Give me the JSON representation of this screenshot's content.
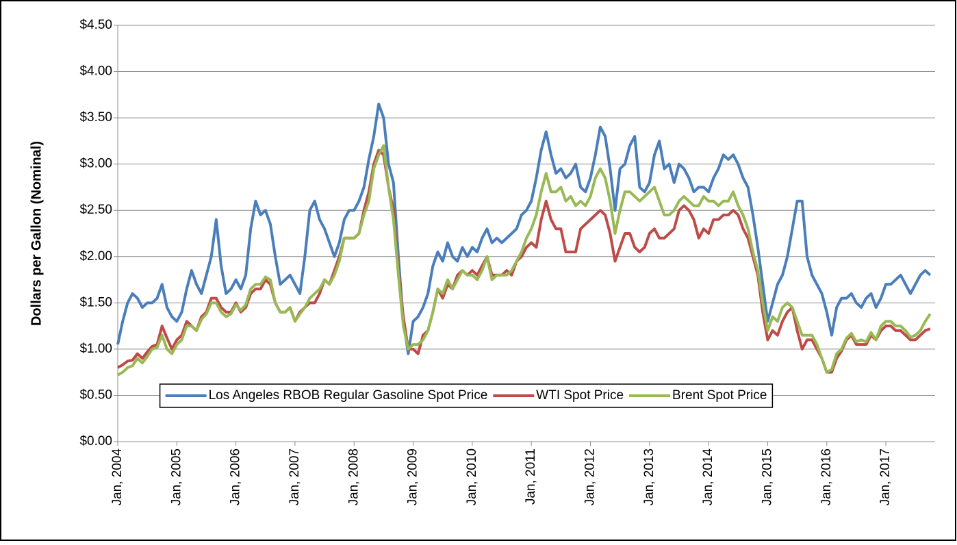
{
  "chart_data": {
    "type": "line",
    "y_label": "Dollars per Gallon (Nominal)",
    "x": [
      "2004-01",
      "2004-02",
      "2004-03",
      "2004-04",
      "2004-05",
      "2004-06",
      "2004-07",
      "2004-08",
      "2004-09",
      "2004-10",
      "2004-11",
      "2004-12",
      "2005-01",
      "2005-02",
      "2005-03",
      "2005-04",
      "2005-05",
      "2005-06",
      "2005-07",
      "2005-08",
      "2005-09",
      "2005-10",
      "2005-11",
      "2005-12",
      "2006-01",
      "2006-02",
      "2006-03",
      "2006-04",
      "2006-05",
      "2006-06",
      "2006-07",
      "2006-08",
      "2006-09",
      "2006-10",
      "2006-11",
      "2006-12",
      "2007-01",
      "2007-02",
      "2007-03",
      "2007-04",
      "2007-05",
      "2007-06",
      "2007-07",
      "2007-08",
      "2007-09",
      "2007-10",
      "2007-11",
      "2007-12",
      "2008-01",
      "2008-02",
      "2008-03",
      "2008-04",
      "2008-05",
      "2008-06",
      "2008-07",
      "2008-08",
      "2008-09",
      "2008-10",
      "2008-11",
      "2008-12",
      "2009-01",
      "2009-02",
      "2009-03",
      "2009-04",
      "2009-05",
      "2009-06",
      "2009-07",
      "2009-08",
      "2009-09",
      "2009-10",
      "2009-11",
      "2009-12",
      "2010-01",
      "2010-02",
      "2010-03",
      "2010-04",
      "2010-05",
      "2010-06",
      "2010-07",
      "2010-08",
      "2010-09",
      "2010-10",
      "2010-11",
      "2010-12",
      "2011-01",
      "2011-02",
      "2011-03",
      "2011-04",
      "2011-05",
      "2011-06",
      "2011-07",
      "2011-08",
      "2011-09",
      "2011-10",
      "2011-11",
      "2011-12",
      "2012-01",
      "2012-02",
      "2012-03",
      "2012-04",
      "2012-05",
      "2012-06",
      "2012-07",
      "2012-08",
      "2012-09",
      "2012-10",
      "2012-11",
      "2012-12",
      "2013-01",
      "2013-02",
      "2013-03",
      "2013-04",
      "2013-05",
      "2013-06",
      "2013-07",
      "2013-08",
      "2013-09",
      "2013-10",
      "2013-11",
      "2013-12",
      "2014-01",
      "2014-02",
      "2014-03",
      "2014-04",
      "2014-05",
      "2014-06",
      "2014-07",
      "2014-08",
      "2014-09",
      "2014-10",
      "2014-11",
      "2014-12",
      "2015-01",
      "2015-02",
      "2015-03",
      "2015-04",
      "2015-05",
      "2015-06",
      "2015-07",
      "2015-08",
      "2015-09",
      "2015-10",
      "2015-11",
      "2015-12",
      "2016-01",
      "2016-02",
      "2016-03",
      "2016-04",
      "2016-05",
      "2016-06",
      "2016-07",
      "2016-08",
      "2016-09",
      "2016-10",
      "2016-11",
      "2016-12",
      "2017-01",
      "2017-02",
      "2017-03",
      "2017-04",
      "2017-05",
      "2017-06",
      "2017-07",
      "2017-08",
      "2017-09",
      "2017-10"
    ],
    "series": [
      {
        "name": "Los Angeles RBOB Regular Gasoline Spot Price",
        "color": "#4a7ebb",
        "values": [
          1.05,
          1.3,
          1.5,
          1.6,
          1.55,
          1.45,
          1.5,
          1.5,
          1.55,
          1.7,
          1.45,
          1.35,
          1.3,
          1.4,
          1.65,
          1.85,
          1.7,
          1.6,
          1.8,
          2.0,
          2.4,
          1.9,
          1.6,
          1.65,
          1.75,
          1.65,
          1.8,
          2.3,
          2.6,
          2.45,
          2.5,
          2.35,
          2.0,
          1.7,
          1.75,
          1.8,
          1.7,
          1.6,
          2.0,
          2.5,
          2.6,
          2.4,
          2.3,
          2.15,
          2.0,
          2.15,
          2.4,
          2.5,
          2.5,
          2.6,
          2.75,
          3.05,
          3.3,
          3.65,
          3.5,
          3.0,
          2.8,
          2.0,
          1.3,
          0.95,
          1.3,
          1.35,
          1.45,
          1.6,
          1.9,
          2.05,
          1.95,
          2.15,
          2.0,
          1.95,
          2.1,
          2.0,
          2.1,
          2.05,
          2.2,
          2.3,
          2.15,
          2.2,
          2.15,
          2.2,
          2.25,
          2.3,
          2.45,
          2.5,
          2.6,
          2.85,
          3.15,
          3.35,
          3.1,
          2.9,
          2.95,
          2.85,
          2.9,
          3.0,
          2.75,
          2.7,
          2.85,
          3.1,
          3.4,
          3.3,
          2.95,
          2.5,
          2.95,
          3.0,
          3.2,
          3.3,
          2.75,
          2.7,
          2.8,
          3.1,
          3.25,
          2.95,
          3.0,
          2.8,
          3.0,
          2.95,
          2.85,
          2.7,
          2.75,
          2.75,
          2.7,
          2.85,
          2.95,
          3.1,
          3.05,
          3.1,
          3.0,
          2.85,
          2.75,
          2.45,
          2.1,
          1.7,
          1.3,
          1.5,
          1.7,
          1.8,
          2.0,
          2.3,
          2.6,
          2.6,
          2.0,
          1.8,
          1.7,
          1.6,
          1.4,
          1.15,
          1.45,
          1.55,
          1.55,
          1.6,
          1.5,
          1.45,
          1.55,
          1.6,
          1.45,
          1.55,
          1.7,
          1.7,
          1.75,
          1.8,
          1.7,
          1.6,
          1.7,
          1.8,
          1.85,
          1.8
        ]
      },
      {
        "name": "WTI Spot Price",
        "color": "#be4b48",
        "values": [
          0.8,
          0.83,
          0.87,
          0.88,
          0.95,
          0.9,
          0.97,
          1.03,
          1.05,
          1.25,
          1.12,
          1.0,
          1.1,
          1.15,
          1.3,
          1.25,
          1.2,
          1.35,
          1.4,
          1.55,
          1.55,
          1.45,
          1.4,
          1.4,
          1.5,
          1.4,
          1.45,
          1.6,
          1.65,
          1.65,
          1.75,
          1.7,
          1.5,
          1.4,
          1.4,
          1.45,
          1.3,
          1.4,
          1.45,
          1.5,
          1.5,
          1.6,
          1.75,
          1.7,
          1.85,
          2.0,
          2.2,
          2.2,
          2.2,
          2.25,
          2.5,
          2.7,
          3.0,
          3.15,
          3.1,
          2.75,
          2.5,
          1.85,
          1.35,
          1.0,
          1.0,
          0.95,
          1.15,
          1.2,
          1.4,
          1.65,
          1.55,
          1.7,
          1.65,
          1.8,
          1.85,
          1.8,
          1.85,
          1.8,
          1.9,
          2.0,
          1.8,
          1.8,
          1.8,
          1.85,
          1.8,
          1.95,
          2.0,
          2.1,
          2.15,
          2.1,
          2.4,
          2.6,
          2.4,
          2.3,
          2.3,
          2.05,
          2.05,
          2.05,
          2.3,
          2.35,
          2.4,
          2.45,
          2.5,
          2.45,
          2.25,
          1.95,
          2.1,
          2.25,
          2.25,
          2.1,
          2.05,
          2.1,
          2.25,
          2.3,
          2.2,
          2.2,
          2.25,
          2.3,
          2.5,
          2.55,
          2.5,
          2.4,
          2.2,
          2.3,
          2.25,
          2.4,
          2.4,
          2.45,
          2.45,
          2.5,
          2.45,
          2.3,
          2.2,
          2.0,
          1.8,
          1.4,
          1.1,
          1.2,
          1.15,
          1.3,
          1.4,
          1.45,
          1.2,
          1.0,
          1.1,
          1.1,
          1.0,
          0.9,
          0.75,
          0.75,
          0.9,
          0.98,
          1.1,
          1.15,
          1.05,
          1.05,
          1.05,
          1.15,
          1.1,
          1.2,
          1.25,
          1.25,
          1.2,
          1.2,
          1.15,
          1.1,
          1.1,
          1.15,
          1.2,
          1.22
        ]
      },
      {
        "name": "Brent Spot Price",
        "color": "#98b954",
        "values": [
          0.72,
          0.75,
          0.8,
          0.82,
          0.9,
          0.85,
          0.92,
          1.0,
          1.02,
          1.15,
          1.0,
          0.95,
          1.05,
          1.1,
          1.25,
          1.25,
          1.2,
          1.32,
          1.38,
          1.5,
          1.5,
          1.4,
          1.35,
          1.38,
          1.48,
          1.42,
          1.48,
          1.65,
          1.7,
          1.7,
          1.78,
          1.75,
          1.5,
          1.4,
          1.4,
          1.45,
          1.3,
          1.38,
          1.45,
          1.55,
          1.6,
          1.65,
          1.75,
          1.7,
          1.8,
          1.95,
          2.2,
          2.2,
          2.2,
          2.25,
          2.45,
          2.6,
          2.95,
          3.1,
          3.2,
          2.75,
          2.4,
          1.8,
          1.25,
          1.0,
          1.05,
          1.05,
          1.1,
          1.2,
          1.4,
          1.65,
          1.6,
          1.75,
          1.65,
          1.75,
          1.85,
          1.8,
          1.8,
          1.75,
          1.85,
          2.0,
          1.75,
          1.8,
          1.8,
          1.8,
          1.85,
          1.95,
          2.05,
          2.2,
          2.3,
          2.45,
          2.7,
          2.9,
          2.7,
          2.7,
          2.75,
          2.6,
          2.65,
          2.55,
          2.6,
          2.55,
          2.65,
          2.85,
          2.95,
          2.85,
          2.6,
          2.25,
          2.5,
          2.7,
          2.7,
          2.65,
          2.6,
          2.65,
          2.7,
          2.75,
          2.6,
          2.45,
          2.45,
          2.5,
          2.6,
          2.65,
          2.6,
          2.55,
          2.55,
          2.65,
          2.6,
          2.6,
          2.55,
          2.6,
          2.6,
          2.7,
          2.55,
          2.45,
          2.3,
          2.05,
          1.85,
          1.5,
          1.2,
          1.35,
          1.3,
          1.45,
          1.5,
          1.45,
          1.3,
          1.15,
          1.15,
          1.15,
          1.05,
          0.9,
          0.75,
          0.78,
          0.95,
          1.0,
          1.12,
          1.17,
          1.08,
          1.1,
          1.08,
          1.18,
          1.1,
          1.25,
          1.3,
          1.3,
          1.25,
          1.25,
          1.2,
          1.13,
          1.15,
          1.2,
          1.3,
          1.38
        ]
      }
    ],
    "xlim": [
      "2004-01",
      "2017-11"
    ],
    "xticks": [
      {
        "value": "2004-01",
        "label": "Jan, 2004"
      },
      {
        "value": "2005-01",
        "label": "Jan, 2005"
      },
      {
        "value": "2006-01",
        "label": "Jan, 2006"
      },
      {
        "value": "2007-01",
        "label": "Jan, 2007"
      },
      {
        "value": "2008-01",
        "label": "Jan, 2008"
      },
      {
        "value": "2009-01",
        "label": "Jan, 2009"
      },
      {
        "value": "2010-01",
        "label": "Jan, 2010"
      },
      {
        "value": "2011-01",
        "label": "Jan, 2011"
      },
      {
        "value": "2012-01",
        "label": "Jan, 2012"
      },
      {
        "value": "2013-01",
        "label": "Jan, 2013"
      },
      {
        "value": "2014-01",
        "label": "Jan, 2014"
      },
      {
        "value": "2015-01",
        "label": "Jan, 2015"
      },
      {
        "value": "2016-01",
        "label": "Jan, 2016"
      },
      {
        "value": "2017-01",
        "label": "Jan, 2017"
      }
    ],
    "ylim": [
      0,
      4.5
    ],
    "yticks": [
      {
        "value": 0,
        "label": "$0.00"
      },
      {
        "value": 0.5,
        "label": "$0.50"
      },
      {
        "value": 1,
        "label": "$1.00"
      },
      {
        "value": 1.5,
        "label": "$1.50"
      },
      {
        "value": 2,
        "label": "$2.00"
      },
      {
        "value": 2.5,
        "label": "$2.50"
      },
      {
        "value": 3,
        "label": "$3.00"
      },
      {
        "value": 3.5,
        "label": "$3.50"
      },
      {
        "value": 4,
        "label": "$4.00"
      },
      {
        "value": 4.5,
        "label": "$4.50"
      }
    ],
    "grid": true,
    "legend": "bottom"
  }
}
